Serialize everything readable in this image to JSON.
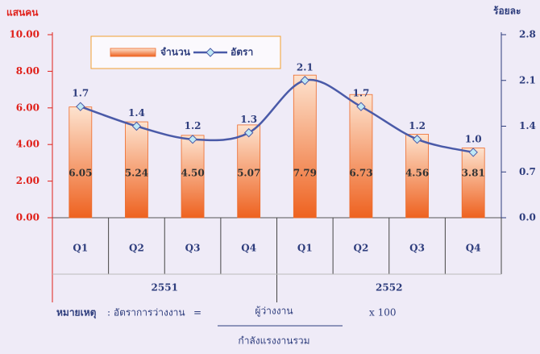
{
  "chart_data": {
    "type": "bar",
    "ylabel": "แสนคน",
    "y2label": "ร้อยละ",
    "categories": [
      "Q1",
      "Q2",
      "Q3",
      "Q4",
      "Q1",
      "Q2",
      "Q3",
      "Q4"
    ],
    "groups": [
      "2551",
      "2552"
    ],
    "series": [
      {
        "name": "จำนวน",
        "type": "bar",
        "color": "#ee6a2a",
        "values": [
          6.05,
          5.24,
          4.5,
          5.07,
          7.79,
          6.73,
          4.56,
          3.81
        ],
        "value_labels": [
          "6.05",
          "5.24",
          "4.50",
          "5.07",
          "7.79",
          "6.73",
          "4.56",
          "3.81"
        ]
      },
      {
        "name": "อัตรา",
        "type": "line",
        "axis": "y2",
        "color": "#4a5aa8",
        "values": [
          1.7,
          1.4,
          1.2,
          1.3,
          2.1,
          1.7,
          1.2,
          1.0
        ],
        "value_labels": [
          "1.7",
          "1.4",
          "1.2",
          "1.3",
          "2.1",
          "1.7",
          "1.2",
          "1.0"
        ]
      }
    ],
    "ylim": [
      0,
      10
    ],
    "yticks": [
      {
        "value": 0,
        "label": "0.00"
      },
      {
        "value": 2,
        "label": "2.00"
      },
      {
        "value": 4,
        "label": "4.00"
      },
      {
        "value": 6,
        "label": "6.00"
      },
      {
        "value": 8,
        "label": "8.00"
      },
      {
        "value": 10,
        "label": "10.00"
      }
    ],
    "y2lim": [
      0,
      2.8
    ],
    "y2ticks": [
      {
        "value": 0,
        "label": "0.0"
      },
      0.7,
      1.4,
      2.1,
      2.8
    ],
    "note": {
      "label": "หมายเหตุ",
      "text": ": อัตราการว่างงาน",
      "equals": "=",
      "numerator": "ผู้ว่างงาน",
      "denominator": "กำลังแรงงานรวม",
      "multiplier": "x  100"
    }
  }
}
